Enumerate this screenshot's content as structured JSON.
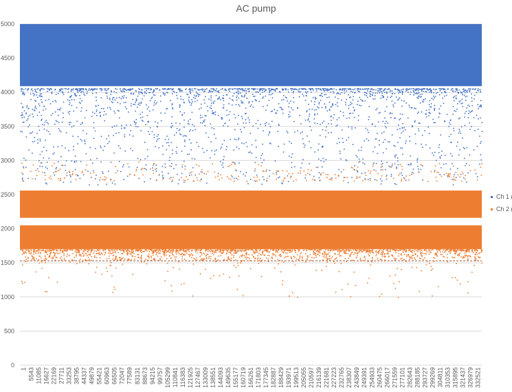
{
  "chart_data": {
    "type": "scatter",
    "title": "AC pump",
    "xlabel": "",
    "ylabel": "",
    "ylim": [
      0,
      5000
    ],
    "yticks": [
      0,
      500,
      1000,
      1500,
      2000,
      2500,
      3000,
      3500,
      4000,
      4500,
      5000
    ],
    "xlim": [
      1,
      338000
    ],
    "xtick_labels": [
      "1",
      "5543",
      "11085",
      "16627",
      "22169",
      "27711",
      "33253",
      "38795",
      "44337",
      "49879",
      "55421",
      "60963",
      "66505",
      "72047",
      "77589",
      "83131",
      "88673",
      "94215",
      "99757",
      "105299",
      "110841",
      "116383",
      "121925",
      "127467",
      "133009",
      "138551",
      "144093",
      "149635",
      "155177",
      "160719",
      "166261",
      "171803",
      "177345",
      "182887",
      "188429",
      "193971",
      "199513",
      "205055",
      "210597",
      "216139",
      "221681",
      "227223",
      "232765",
      "238307",
      "243849",
      "249391",
      "254933",
      "260475",
      "266017",
      "271559",
      "277101",
      "282643",
      "288185",
      "293727",
      "299269",
      "304811",
      "310353",
      "315895",
      "321437",
      "326979",
      "332521"
    ],
    "grid": true,
    "legend_position": "right",
    "series": [
      {
        "name": "Ch 1 (",
        "color": "#4472C4",
        "dense_bands": [
          [
            4090,
            5000
          ]
        ],
        "sparse_range": [
          2650,
          4060
        ],
        "sparse_peak": 4060
      },
      {
        "name": "Ch 2 (",
        "color": "#ED7D31",
        "dense_bands": [
          [
            2160,
            2560
          ],
          [
            1700,
            2050
          ]
        ],
        "sparse_ranges": [
          [
            2700,
            3000
          ],
          [
            1540,
            1700
          ],
          [
            1000,
            1530
          ]
        ],
        "dashed_level": 1530
      }
    ]
  }
}
